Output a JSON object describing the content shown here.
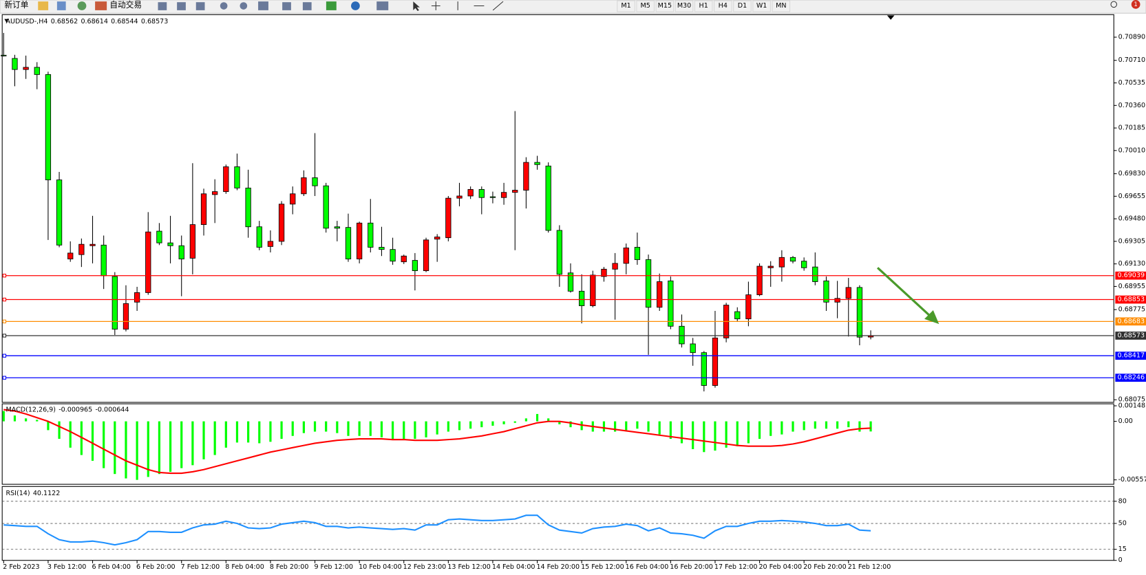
{
  "toolbar": {
    "new_order": "新订单",
    "auto_trading": "自动交易",
    "timeframes": [
      "M1",
      "M5",
      "M15",
      "M30",
      "H1",
      "H4",
      "D1",
      "W1",
      "MN"
    ],
    "notification_count": 1
  },
  "chart_data": [
    {
      "type": "candlestick",
      "symbol": "AUDUSD-,H4",
      "up_color": "#ff0000",
      "down_color": "#00ff00",
      "categories": [
        "2 Feb 2023",
        null,
        null,
        null,
        "3 Feb 12:00",
        null,
        null,
        null,
        "6 Feb 04:00",
        null,
        null,
        null,
        "6 Feb 20:00",
        null,
        null,
        null,
        "7 Feb 12:00",
        null,
        null,
        null,
        "8 Feb 04:00",
        null,
        null,
        null,
        "8 Feb 20:00",
        null,
        null,
        null,
        "9 Feb 12:00",
        null,
        null,
        null,
        "10 Feb 04:00",
        null,
        null,
        null,
        "12 Feb 23:00",
        null,
        null,
        null,
        "13 Feb 12:00",
        null,
        null,
        null,
        "14 Feb 04:00",
        null,
        null,
        null,
        "14 Feb 20:00",
        null,
        null,
        null,
        "15 Feb 12:00",
        null,
        null,
        null,
        "16 Feb 04:00",
        null,
        null,
        null,
        "16 Feb 20:00",
        null,
        null,
        null,
        "17 Feb 12:00",
        null,
        null,
        null,
        "20 Feb 04:00",
        null,
        null,
        null,
        "20 Feb 20:00",
        null,
        null,
        null,
        "21 Feb 12:00",
        null,
        null
      ],
      "open": [
        0.7075,
        0.70725,
        0.70639,
        0.70656,
        0.706,
        0.69782,
        0.69168,
        0.69202,
        0.69271,
        0.69276,
        0.69032,
        0.68623,
        0.68833,
        0.68907,
        0.69384,
        0.69293,
        0.69271,
        0.69174,
        0.69435,
        0.69668,
        0.69691,
        0.69884,
        0.69719,
        0.69418,
        0.69265,
        0.69305,
        0.69594,
        0.69674,
        0.69799,
        0.69736,
        0.69418,
        0.69413,
        0.69168,
        0.69447,
        0.69259,
        0.69242,
        0.69146,
        0.69157,
        0.69077,
        0.69322,
        0.69333,
        0.6964,
        0.69657,
        0.69708,
        0.69651,
        0.69645,
        0.69685,
        0.69702,
        0.69918,
        0.6989,
        0.6939,
        0.6906,
        0.68918,
        0.68805,
        0.69032,
        0.69089,
        0.69134,
        0.69259,
        0.69163,
        0.68793,
        0.68998,
        0.68646,
        0.68509,
        0.68441,
        0.68186,
        0.68555,
        0.68759,
        0.68703,
        0.6889,
        0.691,
        0.69106,
        0.6918,
        0.69151,
        0.69106,
        0.68998,
        0.68833,
        0.68862,
        0.68947,
        0.68562
      ],
      "high": [
        0.70923,
        0.70753,
        0.70747,
        0.70696,
        0.70622,
        0.69844,
        0.69305,
        0.69327,
        0.69503,
        0.6935,
        0.69066,
        0.68964,
        0.68952,
        0.69532,
        0.69447,
        0.69503,
        0.6935,
        0.69912,
        0.69714,
        0.69787,
        0.69901,
        0.69986,
        0.69861,
        0.69464,
        0.6939,
        0.69617,
        0.69731,
        0.69856,
        0.70145,
        0.69759,
        0.69464,
        0.6952,
        0.69458,
        0.69634,
        0.69418,
        0.69333,
        0.69202,
        0.69214,
        0.69333,
        0.69361,
        0.69657,
        0.69759,
        0.69731,
        0.69731,
        0.69691,
        0.69759,
        0.70316,
        0.69958,
        0.69969,
        0.69918,
        0.6943,
        0.69134,
        0.69049,
        0.69077,
        0.69106,
        0.69214,
        0.69288,
        0.69373,
        0.69202,
        0.69055,
        0.69032,
        0.68737,
        0.68555,
        0.68453,
        0.68765,
        0.68828,
        0.68793,
        0.68992,
        0.69134,
        0.69151,
        0.69236,
        0.69191,
        0.6918,
        0.69219,
        0.69032,
        0.68998,
        0.69021,
        0.68964,
        0.68614
      ],
      "low": [
        0.7074,
        0.70509,
        0.70566,
        0.70486,
        0.69316,
        0.69259,
        0.69146,
        0.69106,
        0.69134,
        0.68935,
        0.68578,
        0.68606,
        0.68765,
        0.6889,
        0.69276,
        0.69134,
        0.68879,
        0.69049,
        0.6935,
        0.69447,
        0.69674,
        0.69702,
        0.69333,
        0.69236,
        0.69219,
        0.69276,
        0.69515,
        0.69657,
        0.69657,
        0.69373,
        0.69305,
        0.69146,
        0.69134,
        0.69219,
        0.69191,
        0.69123,
        0.69129,
        0.68924,
        0.69066,
        0.69146,
        0.69305,
        0.69577,
        0.69634,
        0.69515,
        0.696,
        0.69589,
        0.69236,
        0.6956,
        0.69861,
        0.69373,
        0.68952,
        0.68907,
        0.68668,
        0.68793,
        0.68992,
        0.68697,
        0.69049,
        0.69123,
        0.68424,
        0.68765,
        0.68623,
        0.68481,
        0.68339,
        0.6814,
        0.68169,
        0.68521,
        0.6868,
        0.68646,
        0.68879,
        0.68952,
        0.68992,
        0.69134,
        0.69077,
        0.68964,
        0.68765,
        0.68708,
        0.68566,
        0.68498,
        0.68544
      ],
      "close": [
        0.70747,
        0.70639,
        0.70656,
        0.706,
        0.69782,
        0.69276,
        0.69214,
        0.69282,
        0.69282,
        0.69038,
        0.68623,
        0.68822,
        0.68907,
        0.69378,
        0.69293,
        0.69271,
        0.69168,
        0.69435,
        0.69674,
        0.69691,
        0.69884,
        0.69719,
        0.69418,
        0.69259,
        0.69305,
        0.69594,
        0.69674,
        0.69799,
        0.69736,
        0.69407,
        0.69407,
        0.69168,
        0.69447,
        0.69259,
        0.69242,
        0.69151,
        0.69191,
        0.69077,
        0.69316,
        0.69339,
        0.6964,
        0.69657,
        0.69708,
        0.69645,
        0.69645,
        0.69685,
        0.69702,
        0.69918,
        0.69901,
        0.6939,
        0.69049,
        0.68918,
        0.68805,
        0.69043,
        0.69089,
        0.69134,
        0.69254,
        0.69163,
        0.68793,
        0.68992,
        0.68646,
        0.68509,
        0.68441,
        0.68186,
        0.68555,
        0.6881,
        0.68703,
        0.6889,
        0.69112,
        0.69112,
        0.6918,
        0.69151,
        0.691,
        0.68992,
        0.68833,
        0.68862,
        0.68947,
        0.68561,
        0.68573
      ],
      "ylim": [
        0.68055,
        0.71065
      ],
      "yticks": [
        {
          "value": 0.7089,
          "label": "0.70890"
        },
        {
          "value": 0.7071,
          "label": "0.70710"
        },
        {
          "value": 0.70535,
          "label": "0.70535"
        },
        {
          "value": 0.7036,
          "label": "0.70360"
        },
        {
          "value": 0.70185,
          "label": "0.70185"
        },
        {
          "value": 0.7001,
          "label": "0.70010"
        },
        {
          "value": 0.6983,
          "label": "0.69830"
        },
        {
          "value": 0.69655,
          "label": "0.69655"
        },
        {
          "value": 0.6948,
          "label": "0.69480"
        },
        {
          "value": 0.69305,
          "label": "0.69305"
        },
        {
          "value": 0.6913,
          "label": "0.69130"
        },
        {
          "value": 0.68955,
          "label": "0.68955"
        },
        {
          "value": 0.68775,
          "label": "0.68775"
        },
        {
          "value": 0.68075,
          "label": "0.68075"
        }
      ],
      "levels": [
        {
          "value": 0.69039,
          "color": "#ff0000"
        },
        {
          "value": 0.68853,
          "color": "#ff0000"
        },
        {
          "value": 0.68683,
          "color": "#ff8c00"
        },
        {
          "value": 0.68573,
          "color": "#303030"
        },
        {
          "value": 0.68417,
          "color": "#0000ff"
        },
        {
          "value": 0.68246,
          "color": "#0000ff"
        }
      ]
    },
    {
      "type": "macd",
      "title": "MACD(12,26,9)",
      "ylim": [
        -0.006,
        0.00167
      ],
      "yticks": [
        0.00148,
        {
          "value": 0,
          "label": "0.00"
        },
        -0.005577
      ],
      "series": [
        {
          "type": "bar",
          "color": "#00ff00",
          "values": [
            0.00098,
            0.00056,
            0.00028,
            0.00014,
            -0.00084,
            -0.00167,
            -0.00251,
            -0.00321,
            -0.00376,
            -0.00446,
            -0.00502,
            -0.00544,
            -0.00558,
            -0.0053,
            -0.00502,
            -0.00481,
            -0.00446,
            -0.00418,
            -0.00362,
            -0.00321,
            -0.00251,
            -0.00202,
            -0.00202,
            -0.00209,
            -0.00195,
            -0.00167,
            -0.00139,
            -0.00112,
            -0.00098,
            -0.00098,
            -0.00112,
            -0.00139,
            -0.00139,
            -0.00139,
            -0.00153,
            -0.00167,
            -0.00167,
            -0.00167,
            -0.00153,
            -0.00125,
            -0.00098,
            -0.00084,
            -0.0007,
            -0.00056,
            -0.00042,
            -0.00028,
            -0.00014,
            0.00028,
            0.0007,
            0.00028,
            -0.00028,
            -0.00056,
            -0.00084,
            -0.00098,
            -0.00098,
            -0.00098,
            -0.00084,
            -0.0007,
            -0.00098,
            -0.00125,
            -0.00167,
            -0.00209,
            -0.00265,
            -0.00293,
            -0.00279,
            -0.00251,
            -0.00237,
            -0.00209,
            -0.00167,
            -0.00139,
            -0.00125,
            -0.00098,
            -0.00084,
            -0.0007,
            -0.0007,
            -0.0007,
            -0.00056,
            -0.00098,
            -0.000965
          ]
        },
        {
          "type": "line",
          "color": "#ff0000",
          "values": [
            0.00112,
            0.00098,
            0.0007,
            0.00035,
            0,
            -0.00049,
            -0.00098,
            -0.00153,
            -0.00209,
            -0.00265,
            -0.00321,
            -0.00376,
            -0.00418,
            -0.0046,
            -0.00488,
            -0.00495,
            -0.00495,
            -0.00481,
            -0.0046,
            -0.00432,
            -0.00404,
            -0.00376,
            -0.00349,
            -0.00321,
            -0.00293,
            -0.00272,
            -0.00251,
            -0.0023,
            -0.00209,
            -0.00195,
            -0.00181,
            -0.00174,
            -0.00167,
            -0.00167,
            -0.00167,
            -0.00174,
            -0.00174,
            -0.00181,
            -0.00181,
            -0.00181,
            -0.00174,
            -0.00167,
            -0.00153,
            -0.00139,
            -0.00118,
            -0.00098,
            -0.0007,
            -0.00042,
            -0.00014,
            0,
            0,
            -0.00014,
            -0.00035,
            -0.00049,
            -0.00063,
            -0.00077,
            -0.00091,
            -0.00105,
            -0.00118,
            -0.00132,
            -0.00146,
            -0.0016,
            -0.00174,
            -0.00188,
            -0.00202,
            -0.00216,
            -0.0023,
            -0.00237,
            -0.00237,
            -0.00237,
            -0.0023,
            -0.00216,
            -0.00195,
            -0.00167,
            -0.00139,
            -0.00111,
            -0.00084,
            -0.0007,
            -0.000644
          ]
        }
      ]
    },
    {
      "type": "rsi",
      "title": "RSI(14)",
      "ylim": [
        0,
        100
      ],
      "yticks": [
        80,
        50,
        15,
        0
      ],
      "grid": true,
      "series": [
        {
          "type": "line",
          "color": "#1e90ff",
          "values": [
            48,
            47,
            46,
            46,
            36,
            28,
            25,
            25,
            26,
            24,
            21,
            24,
            28,
            39,
            39,
            38,
            38,
            44,
            48,
            49,
            53,
            50,
            44,
            43,
            44,
            49,
            51,
            53,
            51,
            46,
            46,
            44,
            45,
            44,
            43,
            42,
            43,
            41,
            48,
            48,
            55,
            56,
            55,
            54,
            54,
            55,
            56,
            61,
            61,
            48,
            41,
            39,
            37,
            43,
            45,
            46,
            49,
            47,
            40,
            44,
            37,
            36,
            34,
            30,
            40,
            46,
            46,
            50,
            53,
            53,
            54,
            53,
            52,
            50,
            47,
            47,
            49,
            41,
            40.1122
          ]
        }
      ]
    }
  ]
}
